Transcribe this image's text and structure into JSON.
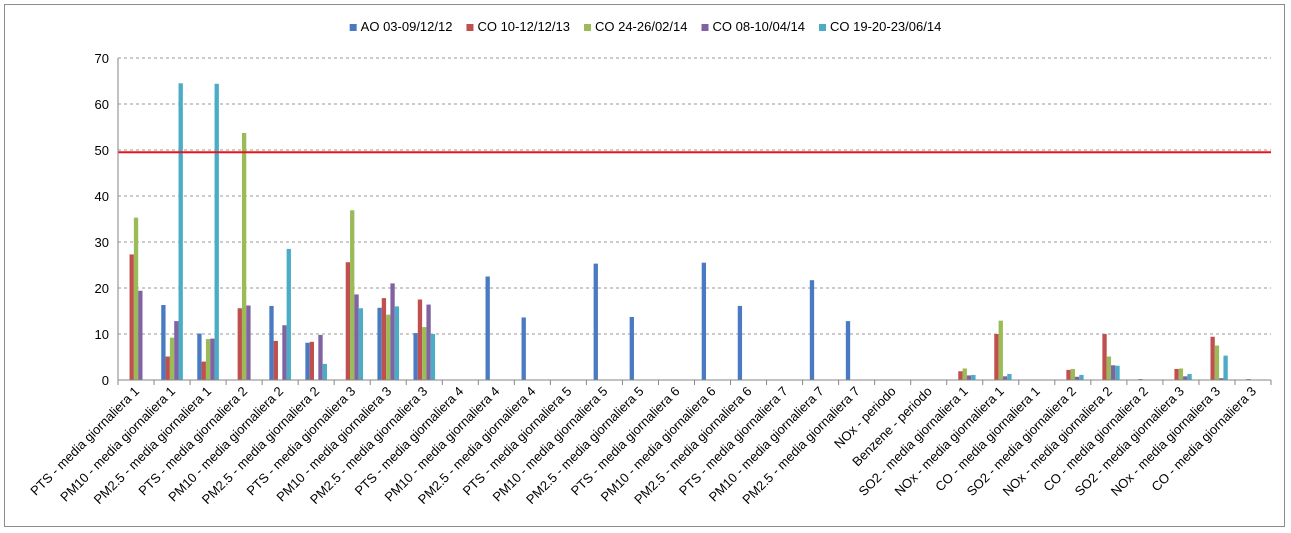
{
  "chart_data": {
    "type": "bar",
    "title": "",
    "xlabel": "",
    "ylabel": "",
    "ylim": [
      0,
      70
    ],
    "yticks": [
      0,
      10,
      20,
      30,
      40,
      50,
      60,
      70
    ],
    "grid": true,
    "legend_position": "top",
    "reference_line": {
      "value": 49.5,
      "color": "#e8141c"
    },
    "categories": [
      "PTS - media giornaliera 1",
      "PM10 - media giornaliera 1",
      "PM2.5 - media giornaliera 1",
      "PTS - media giornaliera 2",
      "PM10 - media giornaliera 2",
      "PM2.5 - media giornaliera 2",
      "PTS - media giornaliera 3",
      "PM10 - media giornaliera 3",
      "PM2.5 - media giornaliera 3",
      "PTS - media giornaliera 4",
      "PM10 - media giornaliera 4",
      "PM2.5 - media giornaliera 4",
      "PTS - media giornaliera 5",
      "PM10 - media giornaliera 5",
      "PM2.5 - media giornaliera 5",
      "PTS - media giornaliera 6",
      "PM10 - media giornaliera 6",
      "PM2.5 - media giornaliera 6",
      "PTS - media giornaliera 7",
      "PM10 - media giornaliera 7",
      "PM2.5 - media giornaliera 7",
      "NOx - periodo",
      "Benzene - periodo",
      "SO2 - media giornaliera 1",
      "NOx - media giornaliera 1",
      "CO - media giornaliera 1",
      "SO2 - media giornaliera 2",
      "NOx - media giornaliera 2",
      "CO - media giornaliera 2",
      "SO2 - media giornaliera 3",
      "NOx - media giornaliera 3",
      "CO - media giornaliera 3"
    ],
    "series": [
      {
        "name": "AO 03-09/12/12",
        "color": "#4a7bc2",
        "values": [
          null,
          16.3,
          10.1,
          null,
          16.1,
          8.1,
          null,
          15.7,
          10.2,
          null,
          22.5,
          13.6,
          null,
          25.3,
          13.7,
          null,
          25.5,
          16.1,
          null,
          21.7,
          12.8,
          null,
          null,
          null,
          null,
          null,
          null,
          null,
          null,
          null,
          null,
          null
        ]
      },
      {
        "name": "CO 10-12/12/13",
        "color": "#c0504d",
        "values": [
          27.3,
          5.1,
          4.0,
          15.6,
          8.5,
          8.3,
          25.6,
          17.8,
          17.5,
          null,
          null,
          null,
          null,
          null,
          null,
          null,
          null,
          null,
          null,
          null,
          null,
          null,
          null,
          1.9,
          10.0,
          0.1,
          2.2,
          10.0,
          0.2,
          2.4,
          9.4,
          0.2
        ]
      },
      {
        "name": "CO 24-26/02/14",
        "color": "#9bbb59",
        "values": [
          35.3,
          9.2,
          8.9,
          53.7,
          null,
          null,
          36.9,
          14.2,
          11.5,
          null,
          null,
          null,
          null,
          null,
          null,
          null,
          null,
          null,
          null,
          null,
          null,
          null,
          null,
          2.5,
          12.9,
          null,
          2.4,
          5.1,
          null,
          2.5,
          7.5,
          null
        ]
      },
      {
        "name": "CO 08-10/04/14",
        "color": "#8064a2",
        "values": [
          19.4,
          12.8,
          9.0,
          16.2,
          11.9,
          9.8,
          18.6,
          21.0,
          16.4,
          null,
          null,
          null,
          null,
          null,
          null,
          null,
          null,
          null,
          null,
          null,
          null,
          null,
          null,
          1.0,
          0.8,
          null,
          0.7,
          3.2,
          null,
          0.8,
          0.4,
          null
        ]
      },
      {
        "name": "CO 19-20-23/06/14",
        "color": "#4bacc6",
        "values": [
          null,
          64.5,
          64.4,
          null,
          28.5,
          3.5,
          15.6,
          16.0,
          10.0,
          null,
          null,
          null,
          null,
          null,
          null,
          null,
          null,
          null,
          null,
          null,
          null,
          null,
          null,
          1.1,
          1.3,
          null,
          1.1,
          3.1,
          null,
          1.3,
          5.3,
          null
        ]
      }
    ]
  }
}
